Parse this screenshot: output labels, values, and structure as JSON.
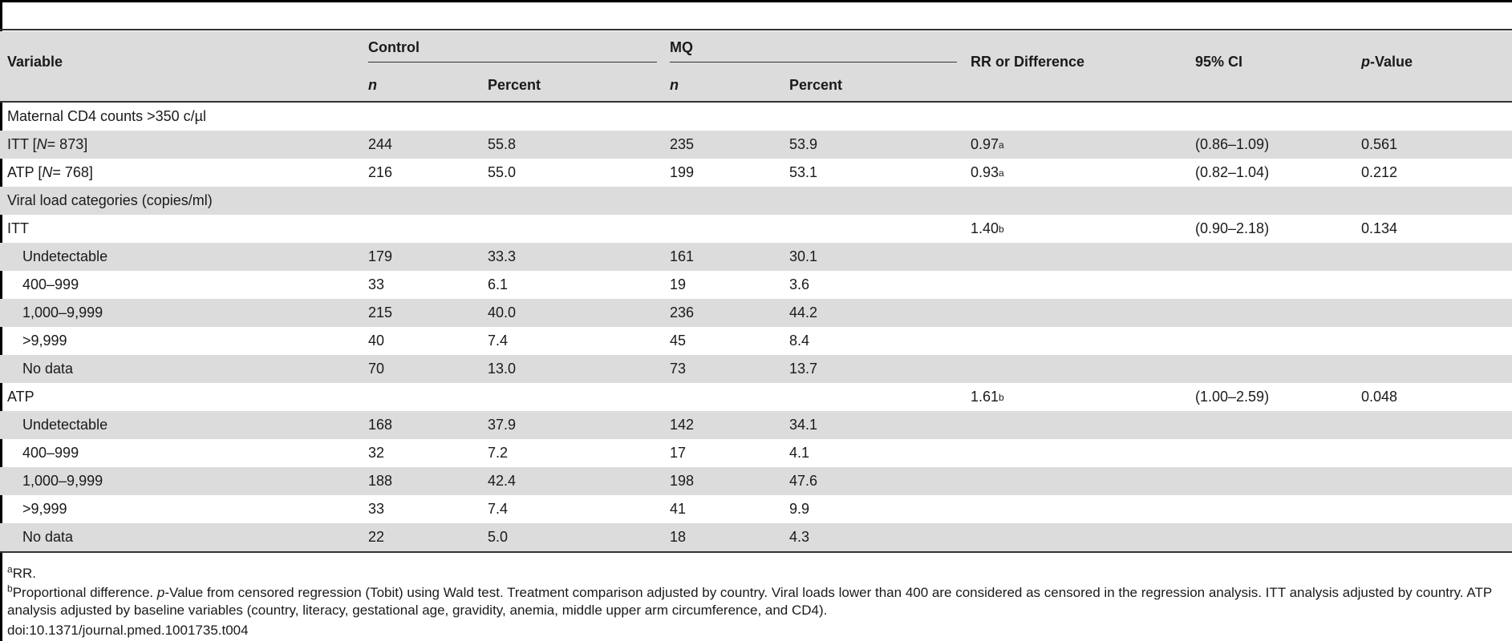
{
  "table": {
    "headers": {
      "variable": "Variable",
      "control": "Control",
      "mq": "MQ",
      "rr": "RR or Difference",
      "ci": "95% CI",
      "p_italic": "p",
      "p_rest": "-Value",
      "n": "n",
      "percent": "Percent"
    },
    "rows": [
      {
        "label": "Maternal CD4 counts >350 c/µl"
      },
      {
        "label_pre": "ITT [",
        "label_it": "N",
        "label_post": " = 873]",
        "cn": "244",
        "cp": "55.8",
        "mn": "235",
        "mp": "53.9",
        "rr": "0.97",
        "rr_sup": "a",
        "ci": "(0.86–1.09)",
        "p": "0.561"
      },
      {
        "label_pre": "ATP [",
        "label_it": "N",
        "label_post": " = 768]",
        "cn": "216",
        "cp": "55.0",
        "mn": "199",
        "mp": "53.1",
        "rr": "0.93",
        "rr_sup": "a",
        "ci": "(0.82–1.04)",
        "p": "0.212"
      },
      {
        "label": "Viral load categories (copies/ml)"
      },
      {
        "label": "ITT",
        "rr": "1.40",
        "rr_sup": "b",
        "ci": "(0.90–2.18)",
        "p": "0.134"
      },
      {
        "label": "Undetectable",
        "cn": "179",
        "cp": "33.3",
        "mn": "161",
        "mp": "30.1"
      },
      {
        "label": "400–999",
        "cn": "33",
        "cp": "6.1",
        "mn": "19",
        "mp": "3.6"
      },
      {
        "label": "1,000–9,999",
        "cn": "215",
        "cp": "40.0",
        "mn": "236",
        "mp": "44.2"
      },
      {
        "label": ">9,999",
        "cn": "40",
        "cp": "7.4",
        "mn": "45",
        "mp": "8.4"
      },
      {
        "label": "No data",
        "cn": "70",
        "cp": "13.0",
        "mn": "73",
        "mp": "13.7"
      },
      {
        "label": "ATP",
        "rr": "1.61",
        "rr_sup": "b",
        "ci": "(1.00–2.59)",
        "p": "0.048"
      },
      {
        "label": "Undetectable",
        "cn": "168",
        "cp": "37.9",
        "mn": "142",
        "mp": "34.1"
      },
      {
        "label": "400–999",
        "cn": "32",
        "cp": "7.2",
        "mn": "17",
        "mp": "4.1"
      },
      {
        "label": "1,000–9,999",
        "cn": "188",
        "cp": "42.4",
        "mn": "198",
        "mp": "47.6"
      },
      {
        "label": ">9,999",
        "cn": "33",
        "cp": "7.4",
        "mn": "41",
        "mp": "9.9"
      },
      {
        "label": "No data",
        "cn": "22",
        "cp": "5.0",
        "mn": "18",
        "mp": "4.3"
      }
    ]
  },
  "footnotes": {
    "a_mark": "a",
    "a_text": "RR.",
    "b_mark": "b",
    "b_pre": "Proportional difference. ",
    "b_it": "p",
    "b_post": "-Value from censored regression (Tobit) using Wald test. Treatment comparison adjusted by country. Viral loads lower than 400 are considered as censored in the regression analysis. ITT analysis adjusted by country. ATP analysis adjusted by baseline variables (country, literacy, gestational age, gravidity, anemia, middle upper arm circumference, and CD4).",
    "doi": "doi:10.1371/journal.pmed.1001735.t004"
  }
}
